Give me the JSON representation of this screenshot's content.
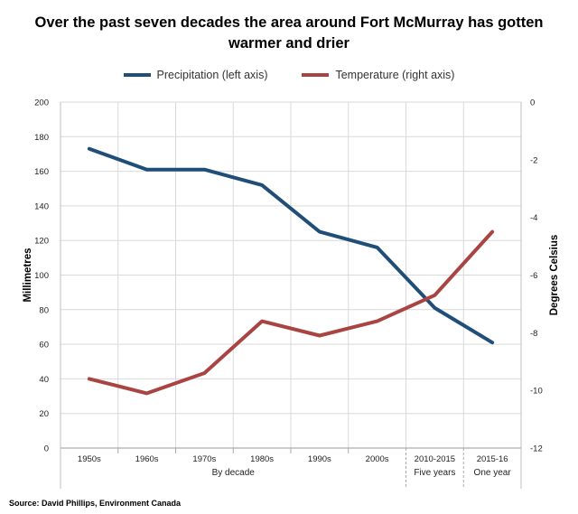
{
  "chart_data": {
    "type": "line",
    "title": "Over the past seven decades the area around Fort McMurray has gotten warmer and drier",
    "categories": [
      "1950s",
      "1960s",
      "1970s",
      "1980s",
      "1990s",
      "2000s",
      "2010-2015",
      "2015-16"
    ],
    "category_groups": [
      {
        "label": "By decade",
        "from": 0,
        "to": 5
      },
      {
        "label": "Five years",
        "from": 6,
        "to": 6
      },
      {
        "label": "One year",
        "from": 7,
        "to": 7
      }
    ],
    "series": [
      {
        "name": "Precipitation (left axis)",
        "axis": "left",
        "color": "#1f4e79",
        "values": [
          173,
          161,
          161,
          152,
          125,
          116,
          81,
          61
        ]
      },
      {
        "name": "Temperature (right axis)",
        "axis": "right",
        "color": "#a94442",
        "values": [
          -9.6,
          -10.1,
          -9.4,
          -7.6,
          -8.1,
          -7.6,
          -6.7,
          -4.5
        ]
      }
    ],
    "ylabel": "Millimetres",
    "ylabel_right": "Degrees Celsius",
    "ylim": [
      0,
      200
    ],
    "ylim_right": [
      -12,
      0
    ],
    "yticks": [
      "0",
      "20",
      "40",
      "60",
      "80",
      "100",
      "120",
      "140",
      "160",
      "180",
      "200"
    ],
    "yticks_right": [
      "-12",
      "-10",
      "-8",
      "-6",
      "-4",
      "-2",
      "0"
    ],
    "grid": true,
    "legend_position": "top"
  },
  "source": "Source:  David Phillips, Environment Canada"
}
